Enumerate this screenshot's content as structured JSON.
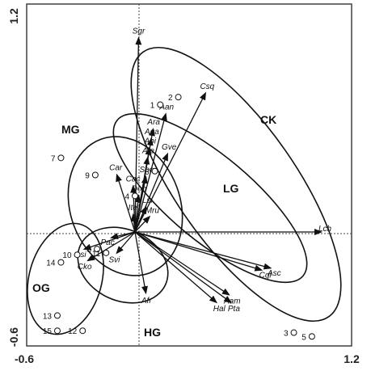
{
  "chart_data": {
    "type": "scatter",
    "title": "",
    "xlabel": "",
    "ylabel": "",
    "xlim": [
      -0.6,
      1.2
    ],
    "ylim": [
      -0.6,
      1.2
    ],
    "x_ticks": [
      "-0.6",
      "1.2"
    ],
    "y_ticks": [
      "1.2",
      "-0.6"
    ],
    "zero_lines": true,
    "species_vectors": [
      {
        "label": "Sgr",
        "x": 0.02,
        "y": 1.02
      },
      {
        "label": "Aan",
        "x": 0.17,
        "y": 0.62
      },
      {
        "label": "Csq",
        "x": 0.39,
        "y": 0.73
      },
      {
        "label": "Ara",
        "x": 0.1,
        "y": 0.54
      },
      {
        "label": "Aga",
        "x": 0.09,
        "y": 0.49
      },
      {
        "label": "Abi",
        "x": 0.08,
        "y": 0.44
      },
      {
        "label": "Ate",
        "x": 0.07,
        "y": 0.39
      },
      {
        "label": "Gve",
        "x": 0.18,
        "y": 0.41
      },
      {
        "label": "Spo",
        "x": 0.06,
        "y": 0.29
      },
      {
        "label": "Car",
        "x": -0.1,
        "y": 0.3
      },
      {
        "label": "Cac",
        "x": -0.01,
        "y": 0.24
      },
      {
        "label": "Don",
        "x": 0.02,
        "y": 0.19
      },
      {
        "label": "Lsi",
        "x": 0.06,
        "y": 0.13
      },
      {
        "label": "Ite",
        "x": -0.01,
        "y": 0.09
      },
      {
        "label": "Mru",
        "x": 0.08,
        "y": 0.08
      },
      {
        "label": "Lch",
        "x": 1.03,
        "y": 0.0
      },
      {
        "label": "Pac",
        "x": -0.13,
        "y": -0.03
      },
      {
        "label": "Asi",
        "x": -0.28,
        "y": -0.09
      },
      {
        "label": "Svi",
        "x": -0.1,
        "y": -0.11
      },
      {
        "label": "Cko",
        "x": -0.26,
        "y": -0.15
      },
      {
        "label": "Asc",
        "x": 0.75,
        "y": -0.19
      },
      {
        "label": "Cgl",
        "x": 0.7,
        "y": -0.2
      },
      {
        "label": "Aam",
        "x": 0.52,
        "y": -0.33
      },
      {
        "label": "Hal",
        "x": 0.45,
        "y": -0.37
      },
      {
        "label": "Pta",
        "x": 0.53,
        "y": -0.37
      },
      {
        "label": "Afr",
        "x": 0.06,
        "y": -0.32
      }
    ],
    "sites": [
      {
        "label": "1",
        "x": 0.14,
        "y": 0.67
      },
      {
        "label": "2",
        "x": 0.24,
        "y": 0.71
      },
      {
        "label": "3",
        "x": 0.88,
        "y": -0.53
      },
      {
        "label": "4",
        "x": 0.0,
        "y": 0.19
      },
      {
        "label": "5",
        "x": 0.98,
        "y": -0.55
      },
      {
        "label": "6",
        "x": 0.11,
        "y": 0.32
      },
      {
        "label": "7",
        "x": -0.41,
        "y": 0.39
      },
      {
        "label": "8",
        "x": -0.21,
        "y": -0.09
      },
      {
        "label": "9",
        "x": -0.22,
        "y": 0.3
      },
      {
        "label": "10",
        "x": -0.32,
        "y": -0.12
      },
      {
        "label": "11",
        "x": -0.16,
        "y": -0.11
      },
      {
        "label": "12",
        "x": -0.29,
        "y": -0.52
      },
      {
        "label": "13",
        "x": -0.43,
        "y": -0.44
      },
      {
        "label": "14",
        "x": -0.41,
        "y": -0.16
      },
      {
        "label": "15",
        "x": -0.43,
        "y": -0.52
      }
    ],
    "groups": [
      "CK",
      "LG",
      "MG",
      "OG",
      "HG"
    ]
  }
}
